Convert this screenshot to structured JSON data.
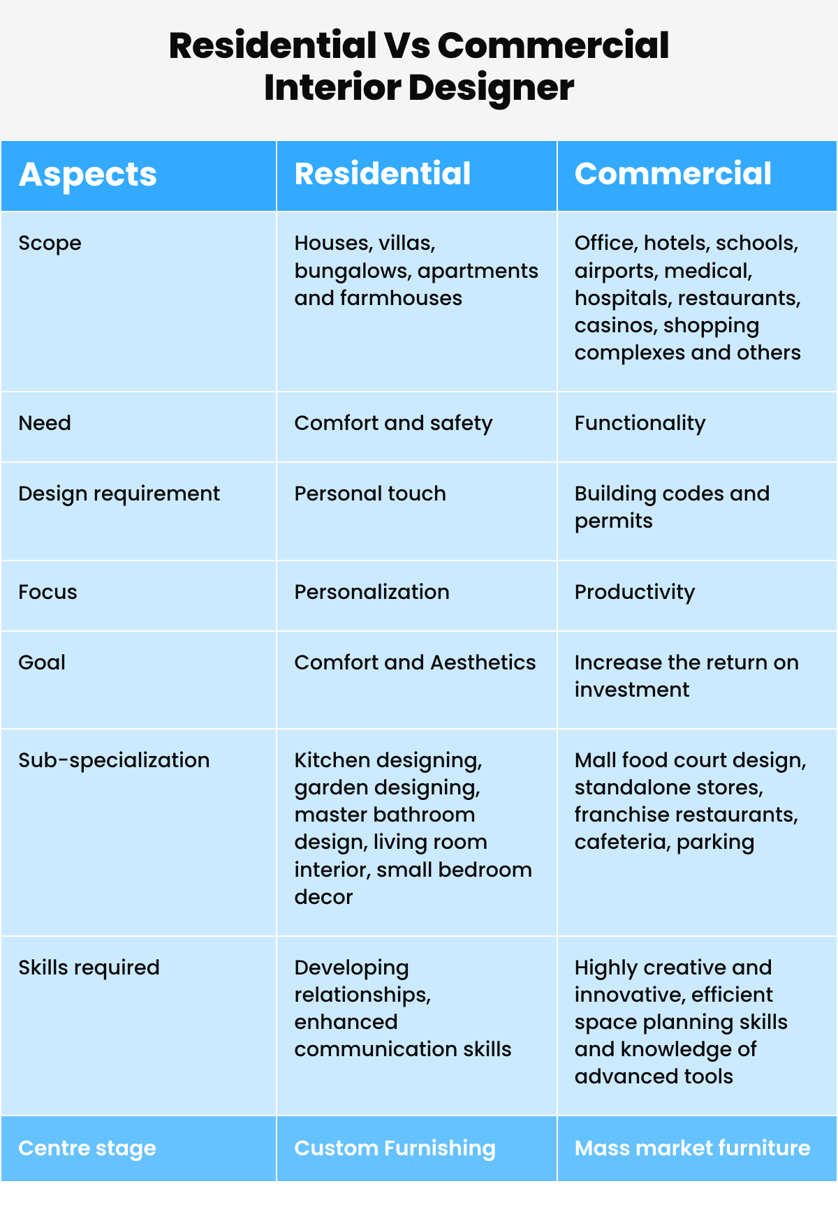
{
  "title_line1": "Residential Vs Commercial",
  "title_line2": "Interior Designer",
  "headers": {
    "aspects": "Aspects",
    "residential": "Residential",
    "commercial": "Commercial"
  },
  "rows": [
    {
      "aspect": "Scope",
      "res": "Houses, villas, bungalows, apartments and farmhouses",
      "com": "Office, hotels, schools, airports, medical, hospitals, restaurants, casinos, shopping complexes and others"
    },
    {
      "aspect": "Need",
      "res": "Comfort and safety",
      "com": "Functionality"
    },
    {
      "aspect": "Design requirement",
      "res": "Personal touch",
      "com": "Building codes and permits"
    },
    {
      "aspect": "Focus",
      "res": "Personalization",
      "com": "Productivity"
    },
    {
      "aspect": "Goal",
      "res": "Comfort and Aesthetics",
      "com": "Increase the return on investment"
    },
    {
      "aspect": "Sub-specialization",
      "res": "Kitchen designing, garden designing, master bathroom design, living room interior, small bedroom decor",
      "com": "Mall food court design, standalone stores, franchise restaurants, cafeteria, parking"
    },
    {
      "aspect": "Skills required",
      "res": "Developing relationships, enhanced communication skills",
      "com": "Highly creative and innovative, efficient space planning skills and knowledge of advanced tools"
    }
  ],
  "footer": {
    "aspect": "Centre stage",
    "res": "Custom Furnishing",
    "com": "Mass market furniture"
  },
  "colors": {
    "header_bg": "#33aaff",
    "body_bg": "#cceaff",
    "footer_bg": "#66c2ff",
    "title_bg": "#f5f5f5",
    "text_dark": "#0a0a0a",
    "text_light": "#ffffff",
    "border": "#ffffff"
  }
}
